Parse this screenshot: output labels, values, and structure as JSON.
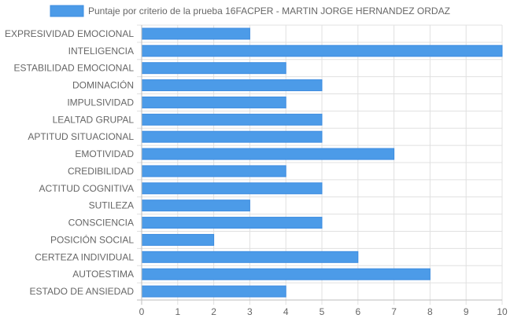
{
  "chart_data": {
    "type": "bar",
    "orientation": "horizontal",
    "categories": [
      "EXPRESIVIDAD EMOCIONAL",
      "INTELIGENCIA",
      "ESTABILIDAD EMOCIONAL",
      "DOMINACIÓN",
      "IMPULSIVIDAD",
      "LEALTAD GRUPAL",
      "APTITUD SITUACIONAL",
      "EMOTIVIDAD",
      "CREDIBILIDAD",
      "ACTITUD COGNITIVA",
      "SUTILEZA",
      "CONSCIENCIA",
      "POSICIÓN SOCIAL",
      "CERTEZA INDIVIDUAL",
      "AUTOESTIMA",
      "ESTADO DE ANSIEDAD"
    ],
    "series": [
      {
        "name": "Puntaje por criterio de la prueba 16FACPER - MARTIN JORGE HERNANDEZ ORDAZ",
        "values": [
          3,
          10,
          4,
          5,
          4,
          5,
          5,
          7,
          4,
          5,
          3,
          5,
          2,
          6,
          8,
          4
        ]
      }
    ],
    "xlim": [
      0,
      10
    ],
    "xticks": [
      "0",
      "1",
      "2",
      "3",
      "4",
      "5",
      "6",
      "7",
      "8",
      "9",
      "10"
    ],
    "grid": true,
    "legend_position": "top-center",
    "colors": {
      "bar_fill": "#4c9be8",
      "bar_stroke": "#3d8ce0",
      "grid": "#e0e0e0",
      "axis": "#bdbdbd",
      "text": "#666666"
    }
  }
}
